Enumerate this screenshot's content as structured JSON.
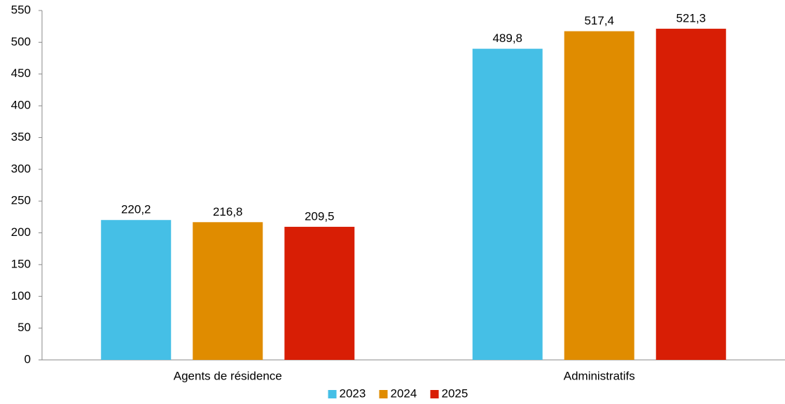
{
  "chart_data": {
    "type": "bar",
    "categories": [
      "Agents de résidence",
      "Administratifs"
    ],
    "series": [
      {
        "name": "2023",
        "color": "#45bfe6",
        "values": [
          220.2,
          489.8
        ],
        "value_labels": [
          "220,2",
          "489,8"
        ]
      },
      {
        "name": "2024",
        "color": "#e08c00",
        "values": [
          216.8,
          517.4
        ],
        "value_labels": [
          "216,8",
          "517,4"
        ]
      },
      {
        "name": "2025",
        "color": "#d81e05",
        "values": [
          209.5,
          521.3
        ],
        "value_labels": [
          "209,5",
          "521,3"
        ]
      }
    ],
    "ylim": [
      0,
      550
    ],
    "yticks": [
      0,
      50,
      100,
      150,
      200,
      250,
      300,
      350,
      400,
      450,
      500,
      550
    ],
    "grid": false,
    "legend": "bottom"
  }
}
